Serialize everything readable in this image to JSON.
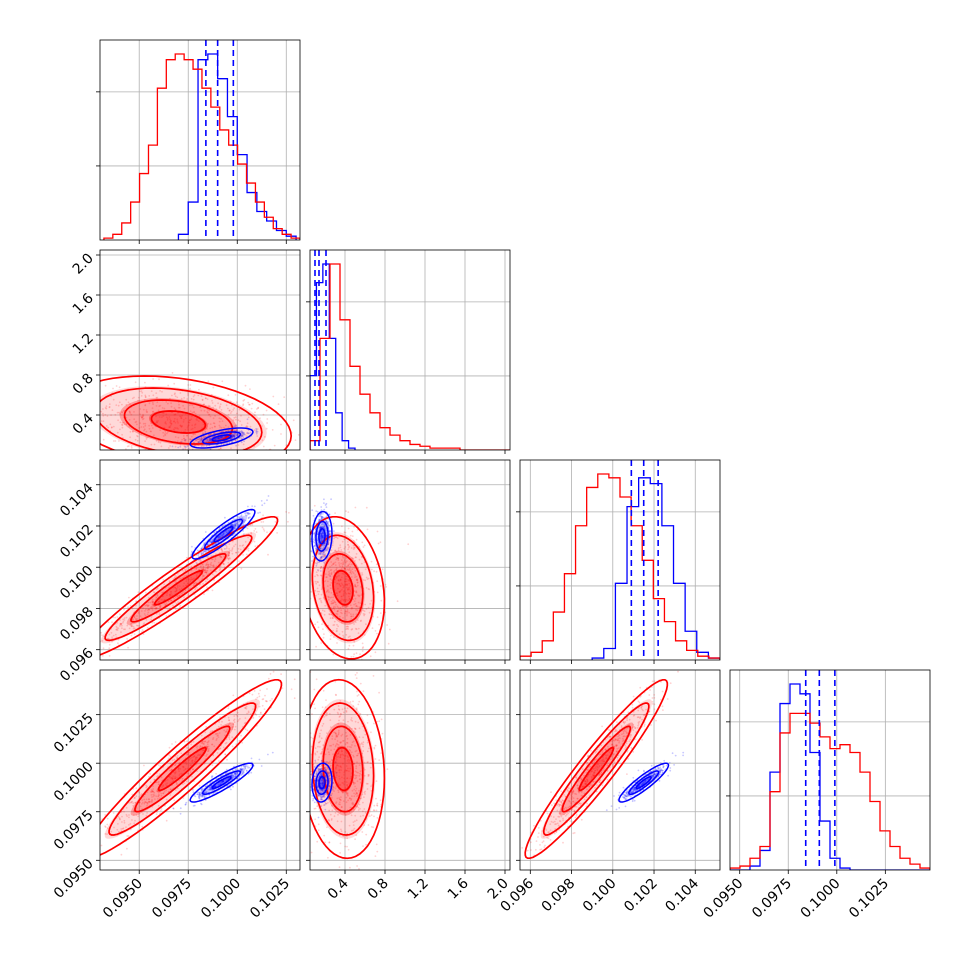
{
  "chart_data": {
    "type": "corner",
    "colors": {
      "posterior_a": "#ff0000",
      "posterior_b": "#0000ff",
      "grid": "#b0b0b0"
    },
    "grid": true,
    "variables": [
      {
        "range": [
          0.093,
          0.1032
        ],
        "ticks": [
          "0.0950",
          "0.0975",
          "0.1000",
          "0.1025"
        ],
        "tick_values": [
          0.095,
          0.0975,
          0.1,
          0.1025
        ]
      },
      {
        "range": [
          0.05,
          2.05
        ],
        "ticks": [
          "0.4",
          "0.8",
          "1.2",
          "1.6",
          "2.0"
        ],
        "tick_values": [
          0.4,
          0.8,
          1.2,
          1.6,
          2.0
        ]
      },
      {
        "range": [
          0.0955,
          0.1052
        ],
        "ticks": [
          "0.096",
          "0.098",
          "0.100",
          "0.102",
          "0.104"
        ],
        "tick_values": [
          0.096,
          0.098,
          0.1,
          0.102,
          0.104
        ]
      },
      {
        "range": [
          0.0945,
          0.1048
        ],
        "ticks": [
          "0.0950",
          "0.0975",
          "0.1000",
          "0.1025"
        ],
        "tick_values": [
          0.095,
          0.0975,
          0.1,
          0.1025
        ]
      }
    ],
    "histograms": [
      {
        "red": {
          "edges": [
            0.0932,
            0.1032
          ],
          "counts": [
            1,
            3,
            9,
            20,
            35,
            50,
            80,
            95,
            98,
            95,
            90,
            80,
            70,
            58,
            50,
            40,
            30,
            20,
            12,
            6,
            3,
            1
          ]
        },
        "blue": {
          "edges": [
            0.097,
            0.103
          ],
          "counts": [
            3,
            20,
            95,
            98,
            85,
            65,
            45,
            25,
            15,
            10,
            5,
            2
          ]
        },
        "quantiles_blue": [
          0.0984,
          0.099,
          0.0998
        ]
      },
      {
        "red": {
          "edges": [
            0.05,
            2.05
          ],
          "counts": [
            5,
            60,
            100,
            70,
            45,
            30,
            20,
            12,
            8,
            5,
            3,
            2,
            1,
            1,
            1,
            0,
            0,
            0,
            0,
            0
          ]
        },
        "blue": {
          "edges": [
            0.05,
            0.5
          ],
          "counts": [
            40,
            90,
            100,
            60,
            20,
            5,
            1
          ]
        },
        "quantiles_blue": [
          0.1,
          0.14,
          0.21
        ]
      },
      {
        "red": {
          "edges": [
            0.0955,
            0.1052
          ],
          "counts": [
            2,
            4,
            10,
            25,
            45,
            70,
            90,
            97,
            95,
            85,
            70,
            52,
            32,
            20,
            10,
            5,
            2,
            1
          ]
        },
        "blue": {
          "edges": [
            0.099,
            0.1052
          ],
          "counts": [
            1,
            6,
            40,
            80,
            95,
            92,
            70,
            40,
            15,
            4,
            1
          ]
        },
        "quantiles_blue": [
          0.1009,
          0.1015,
          0.1022
        ]
      },
      {
        "red": {
          "edges": [
            0.0945,
            0.1048
          ],
          "counts": [
            1,
            2,
            6,
            12,
            40,
            70,
            80,
            80,
            75,
            68,
            62,
            64,
            60,
            50,
            35,
            20,
            12,
            6,
            3,
            1
          ]
        },
        "blue": {
          "edges": [
            0.0945,
            0.1048
          ],
          "counts": [
            0,
            0,
            2,
            10,
            50,
            85,
            95,
            90,
            60,
            25,
            6,
            1,
            0,
            0,
            0,
            0,
            0,
            0,
            0,
            0
          ]
        },
        "quantiles_blue": [
          0.0984,
          0.0991,
          0.0999
        ]
      }
    ],
    "scatter": [
      {
        "row": 1,
        "col": 0,
        "red_center": [
          0.097,
          0.33
        ],
        "red_spread": [
          0.0025,
          0.2
        ],
        "red_corr": -0.3,
        "blue_center": [
          0.0992,
          0.17
        ],
        "blue_spread": [
          0.0008,
          0.05
        ],
        "blue_corr": 0.6
      },
      {
        "row": 2,
        "col": 0,
        "red_center": [
          0.097,
          0.099
        ],
        "red_spread": [
          0.0022,
          0.0015
        ],
        "red_corr": 0.95,
        "blue_center": [
          0.0993,
          0.1016
        ],
        "blue_spread": [
          0.0008,
          0.0006
        ],
        "blue_corr": 0.9
      },
      {
        "row": 2,
        "col": 1,
        "red_center": [
          0.38,
          0.099
        ],
        "red_spread": [
          0.18,
          0.0015
        ],
        "red_corr": -0.2,
        "blue_center": [
          0.17,
          0.1015
        ],
        "blue_spread": [
          0.05,
          0.0006
        ],
        "blue_corr": 0.1
      },
      {
        "row": 3,
        "col": 0,
        "red_center": [
          0.0972,
          0.0997
        ],
        "red_spread": [
          0.0022,
          0.002
        ],
        "red_corr": 0.95,
        "blue_center": [
          0.0992,
          0.099
        ],
        "blue_spread": [
          0.0008,
          0.0005
        ],
        "blue_corr": 0.9
      },
      {
        "row": 3,
        "col": 1,
        "red_center": [
          0.38,
          0.0997
        ],
        "red_spread": [
          0.18,
          0.002
        ],
        "red_corr": -0.1,
        "blue_center": [
          0.17,
          0.099
        ],
        "blue_spread": [
          0.05,
          0.0005
        ],
        "blue_corr": 0.1
      },
      {
        "row": 3,
        "col": 2,
        "red_center": [
          0.0992,
          0.0997
        ],
        "red_spread": [
          0.0015,
          0.002
        ],
        "red_corr": 0.95,
        "blue_center": [
          0.1015,
          0.099
        ],
        "blue_spread": [
          0.0006,
          0.0005
        ],
        "blue_corr": 0.9
      }
    ]
  }
}
